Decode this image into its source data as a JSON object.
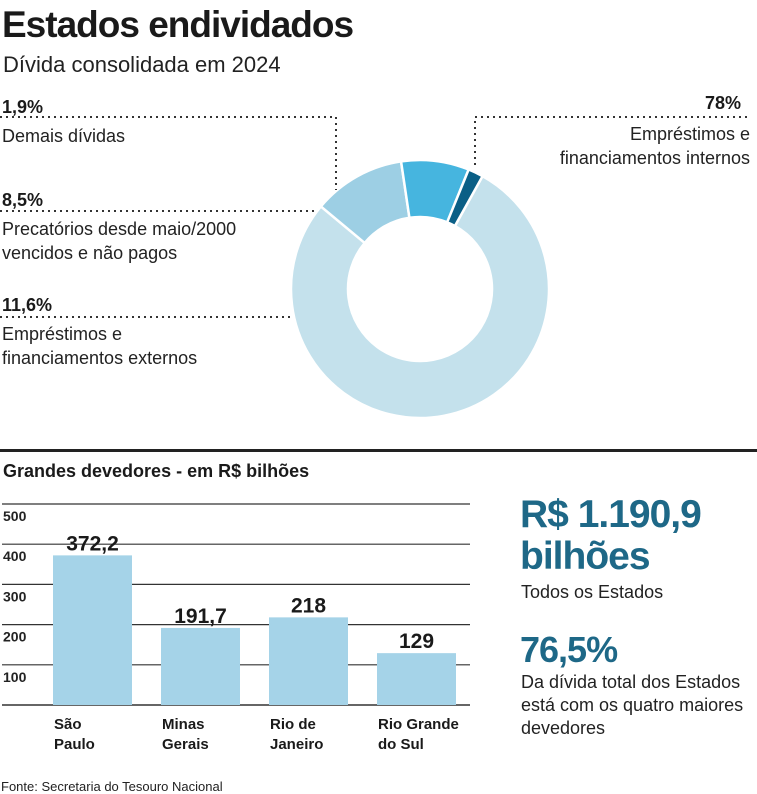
{
  "header": {
    "title": "Estados endividados",
    "subtitle": "Dívida consolidada em 2024"
  },
  "chart_data": [
    {
      "type": "pie",
      "variant": "donut",
      "slices": [
        {
          "pct_label": "78%",
          "value": 78,
          "label": "Empréstimos e financiamentos internos",
          "color": "#c4e1ec"
        },
        {
          "pct_label": "11,6%",
          "value": 11.6,
          "label": "Empréstimos e financiamentos externos",
          "color": "#9dcfe4"
        },
        {
          "pct_label": "8,5%",
          "value": 8.5,
          "label": "Precatórios desde maio/2000 vencidos e não pagos",
          "color": "#46b5df"
        },
        {
          "pct_label": "1,9%",
          "value": 1.9,
          "label": "Demais dívidas",
          "color": "#0a5f86"
        }
      ],
      "label_lines": {
        "internos": [
          "Empréstimos e",
          "financiamentos internos"
        ],
        "externos": [
          "Empréstimos e",
          "financiamentos externos"
        ],
        "precatorios": [
          "Precatórios desde maio/2000",
          "vencidos e não pagos"
        ],
        "demais": [
          "Demais dívidas"
        ]
      }
    },
    {
      "type": "bar",
      "title": "Grandes devedores - em R$ bilhões",
      "categories": [
        "São Paulo",
        "Minas Gerais",
        "Rio de Janeiro",
        "Rio Grande do Sul"
      ],
      "category_lines": [
        [
          "São",
          "Paulo"
        ],
        [
          "Minas",
          "Gerais"
        ],
        [
          "Rio de",
          "Janeiro"
        ],
        [
          "Rio Grande",
          "do Sul"
        ]
      ],
      "values": [
        372.2,
        191.7,
        218,
        129
      ],
      "value_labels": [
        "372,2",
        "191,7",
        "218",
        "129"
      ],
      "yticks": [
        100,
        200,
        300,
        400,
        500
      ],
      "ylim": [
        0,
        500
      ],
      "bar_color": "#a5d3e8",
      "grid": true
    }
  ],
  "summary": {
    "total_value": "R$ 1.190,9 bilhões",
    "total_label": "Todos os Estados",
    "share_value": "76,5%",
    "share_label": "Da dívida total dos Estados está com os quatro maiores devedores"
  },
  "footer": {
    "source": "Fonte: Secretaria do Tesouro Nacional"
  }
}
